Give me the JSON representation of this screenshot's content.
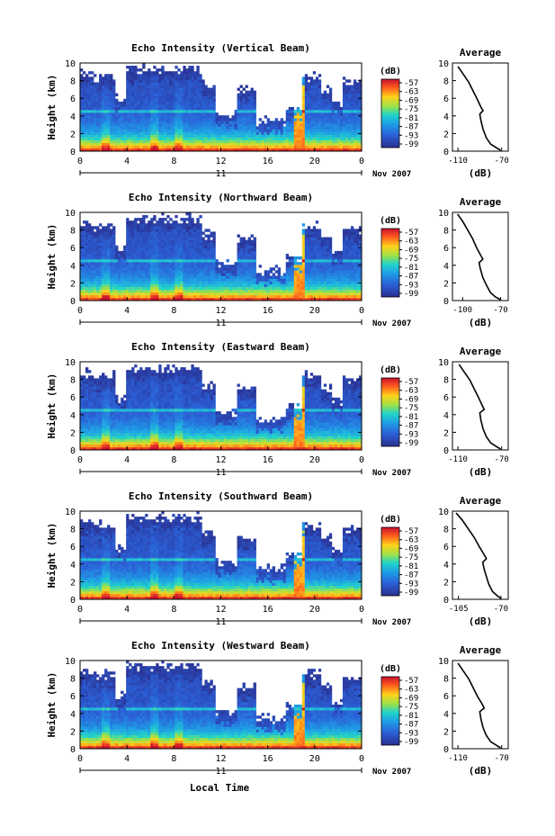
{
  "figure": {
    "xlabel": "Local Time",
    "day_label": "11",
    "date_label": "Nov 2007",
    "colorbar_unit": "(dB)",
    "colorbar_ticks": [
      "-57",
      "-63",
      "-69",
      "-75",
      "-81",
      "-87",
      "-93",
      "-99"
    ],
    "profile_title": "Average",
    "profile_xlabel": "(dB)",
    "height_label": "Height (km)"
  },
  "chart_data": [
    {
      "type": "heatmap",
      "title": "Echo Intensity (Vertical Beam)",
      "ylabel": "Height (km)",
      "xlabel": "",
      "x_ticks": [
        "0",
        "4",
        "8",
        "12",
        "16",
        "20",
        "0"
      ],
      "x_range": [
        0,
        24
      ],
      "y_ticks": [
        "0",
        "2",
        "4",
        "6",
        "8",
        "10"
      ],
      "y_range": [
        0,
        10
      ],
      "color_range": [
        -99,
        -57
      ],
      "colorbar_ticks": [
        "-57",
        "-63",
        "-69",
        "-75",
        "-81",
        "-87",
        "-93",
        "-99"
      ],
      "profile": {
        "type": "line",
        "title": "Average",
        "xlabel": "(dB)",
        "x_ticks": [
          "-110",
          "-70"
        ],
        "x_range": [
          -115,
          -64
        ],
        "y_ticks": [
          "0",
          "2",
          "4",
          "6",
          "8",
          "10"
        ],
        "y_range": [
          0,
          10
        ],
        "points": [
          [
            -71,
            0.1
          ],
          [
            -75,
            0.4
          ],
          [
            -80,
            0.8
          ],
          [
            -84,
            1.5
          ],
          [
            -87,
            2.5
          ],
          [
            -89,
            3.5
          ],
          [
            -90,
            4.2
          ],
          [
            -87,
            4.6
          ],
          [
            -89,
            5.0
          ],
          [
            -92,
            5.8
          ],
          [
            -96,
            6.8
          ],
          [
            -100,
            7.8
          ],
          [
            -105,
            8.7
          ],
          [
            -110,
            9.6
          ]
        ]
      }
    },
    {
      "type": "heatmap",
      "title": "Echo Intensity (Northward Beam)",
      "ylabel": "Height (km)",
      "xlabel": "",
      "x_ticks": [
        "0",
        "4",
        "8",
        "12",
        "16",
        "20",
        "0"
      ],
      "x_range": [
        0,
        24
      ],
      "y_ticks": [
        "0",
        "2",
        "4",
        "6",
        "8",
        "10"
      ],
      "y_range": [
        0,
        10
      ],
      "color_range": [
        -99,
        -57
      ],
      "colorbar_ticks": [
        "-57",
        "-63",
        "-69",
        "-75",
        "-81",
        "-87",
        "-93",
        "-99"
      ],
      "profile": {
        "type": "line",
        "title": "Average",
        "xlabel": "(dB)",
        "x_ticks": [
          "-100",
          "-70"
        ],
        "x_range": [
          -108,
          -64
        ],
        "y_ticks": [
          "0",
          "2",
          "4",
          "6",
          "8",
          "10"
        ],
        "y_range": [
          0,
          10
        ],
        "points": [
          [
            -70,
            0.1
          ],
          [
            -74,
            0.4
          ],
          [
            -78,
            0.9
          ],
          [
            -81,
            1.7
          ],
          [
            -84,
            2.6
          ],
          [
            -86,
            3.6
          ],
          [
            -87,
            4.3
          ],
          [
            -84,
            4.7
          ],
          [
            -86,
            5.2
          ],
          [
            -89,
            6.0
          ],
          [
            -92,
            7.0
          ],
          [
            -96,
            8.0
          ],
          [
            -100,
            9.0
          ],
          [
            -104,
            9.8
          ]
        ]
      }
    },
    {
      "type": "heatmap",
      "title": "Echo Intensity (Eastward Beam)",
      "ylabel": "Height (km)",
      "xlabel": "",
      "x_ticks": [
        "0",
        "4",
        "8",
        "12",
        "16",
        "20",
        "0"
      ],
      "x_range": [
        0,
        24
      ],
      "y_ticks": [
        "0",
        "2",
        "4",
        "6",
        "8",
        "10"
      ],
      "y_range": [
        0,
        10
      ],
      "color_range": [
        -99,
        -57
      ],
      "colorbar_ticks": [
        "-57",
        "-63",
        "-69",
        "-75",
        "-81",
        "-87",
        "-93",
        "-99"
      ],
      "profile": {
        "type": "line",
        "title": "Average",
        "xlabel": "(dB)",
        "x_ticks": [
          "-110",
          "-70"
        ],
        "x_range": [
          -115,
          -64
        ],
        "y_ticks": [
          "0",
          "2",
          "4",
          "6",
          "8",
          "10"
        ],
        "y_range": [
          0,
          10
        ],
        "points": [
          [
            -71,
            0.1
          ],
          [
            -75,
            0.4
          ],
          [
            -80,
            0.8
          ],
          [
            -84,
            1.5
          ],
          [
            -87,
            2.4
          ],
          [
            -89,
            3.4
          ],
          [
            -90,
            4.2
          ],
          [
            -86,
            4.6
          ],
          [
            -88,
            5.1
          ],
          [
            -91,
            5.9
          ],
          [
            -95,
            6.9
          ],
          [
            -99,
            7.9
          ],
          [
            -104,
            8.8
          ],
          [
            -109,
            9.7
          ]
        ]
      }
    },
    {
      "type": "heatmap",
      "title": "Echo Intensity (Southward Beam)",
      "ylabel": "Height (km)",
      "xlabel": "",
      "x_ticks": [
        "0",
        "4",
        "8",
        "12",
        "16",
        "20",
        "0"
      ],
      "x_range": [
        0,
        24
      ],
      "y_ticks": [
        "0",
        "2",
        "4",
        "6",
        "8",
        "10"
      ],
      "y_range": [
        0,
        10
      ],
      "color_range": [
        -99,
        -57
      ],
      "colorbar_ticks": [
        "-57",
        "-63",
        "-69",
        "-75",
        "-81",
        "-87",
        "-93",
        "-99"
      ],
      "profile": {
        "type": "line",
        "title": "Average",
        "xlabel": "(dB)",
        "x_ticks": [
          "-105",
          "-70"
        ],
        "x_range": [
          -110,
          -64
        ],
        "y_ticks": [
          "0",
          "2",
          "4",
          "6",
          "8",
          "10"
        ],
        "y_range": [
          0,
          10
        ],
        "points": [
          [
            -70,
            0.1
          ],
          [
            -73,
            0.4
          ],
          [
            -77,
            0.9
          ],
          [
            -80,
            1.7
          ],
          [
            -82,
            2.6
          ],
          [
            -84,
            3.5
          ],
          [
            -85,
            4.2
          ],
          [
            -82,
            4.6
          ],
          [
            -84,
            5.1
          ],
          [
            -88,
            6.0
          ],
          [
            -92,
            7.0
          ],
          [
            -97,
            8.0
          ],
          [
            -102,
            9.0
          ],
          [
            -107,
            9.8
          ]
        ]
      }
    },
    {
      "type": "heatmap",
      "title": "Echo Intensity (Westward Beam)",
      "ylabel": "Height (km)",
      "xlabel": "Local Time",
      "x_ticks": [
        "0",
        "4",
        "8",
        "12",
        "16",
        "20",
        "0"
      ],
      "x_range": [
        0,
        24
      ],
      "y_ticks": [
        "0",
        "2",
        "4",
        "6",
        "8",
        "10"
      ],
      "y_range": [
        0,
        10
      ],
      "color_range": [
        -99,
        -57
      ],
      "colorbar_ticks": [
        "-57",
        "-63",
        "-69",
        "-75",
        "-81",
        "-87",
        "-93",
        "-99"
      ],
      "profile": {
        "type": "line",
        "title": "Average",
        "xlabel": "(dB)",
        "x_ticks": [
          "-110",
          "-70"
        ],
        "x_range": [
          -115,
          -64
        ],
        "y_ticks": [
          "0",
          "2",
          "4",
          "6",
          "8",
          "10"
        ],
        "y_range": [
          0,
          10
        ],
        "points": [
          [
            -71,
            0.1
          ],
          [
            -75,
            0.4
          ],
          [
            -80,
            0.8
          ],
          [
            -84,
            1.5
          ],
          [
            -87,
            2.4
          ],
          [
            -89,
            3.4
          ],
          [
            -90,
            4.2
          ],
          [
            -86,
            4.6
          ],
          [
            -88,
            5.1
          ],
          [
            -92,
            5.9
          ],
          [
            -96,
            6.9
          ],
          [
            -100,
            7.9
          ],
          [
            -105,
            8.8
          ],
          [
            -110,
            9.7
          ]
        ]
      }
    }
  ]
}
